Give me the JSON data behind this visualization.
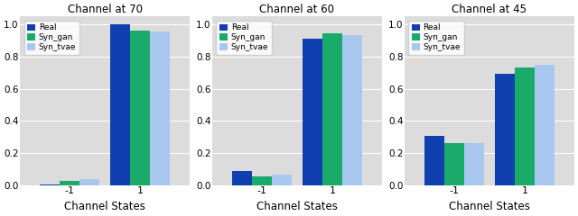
{
  "charts": [
    {
      "title": "Channel at 70",
      "values": {
        "Real": [
          0.005,
          1.0
        ],
        "Syn_gan": [
          0.03,
          0.96
        ],
        "Syn_tvae": [
          0.04,
          0.955
        ]
      }
    },
    {
      "title": "Channel at 60",
      "values": {
        "Real": [
          0.09,
          0.91
        ],
        "Syn_gan": [
          0.055,
          0.945
        ],
        "Syn_tvae": [
          0.065,
          0.935
        ]
      }
    },
    {
      "title": "Channel at 45",
      "values": {
        "Real": [
          0.31,
          0.695
        ],
        "Syn_gan": [
          0.265,
          0.735
        ],
        "Syn_tvae": [
          0.265,
          0.75
        ]
      }
    }
  ],
  "categories": [
    "-1",
    "1"
  ],
  "xlabel": "Channel States",
  "ylim": [
    0.0,
    1.05
  ],
  "yticks": [
    0.0,
    0.2,
    0.4,
    0.6,
    0.8,
    1.0
  ],
  "colors": {
    "Real": "#1040b0",
    "Syn_gan": "#1aaa6a",
    "Syn_tvae": "#a8c8f0"
  },
  "legend_labels": [
    "Real",
    "Syn_gan",
    "Syn_tvae"
  ],
  "bar_width": 0.28,
  "figsize": [
    6.4,
    2.4
  ],
  "dpi": 100,
  "background_color": "#dcdcdc"
}
